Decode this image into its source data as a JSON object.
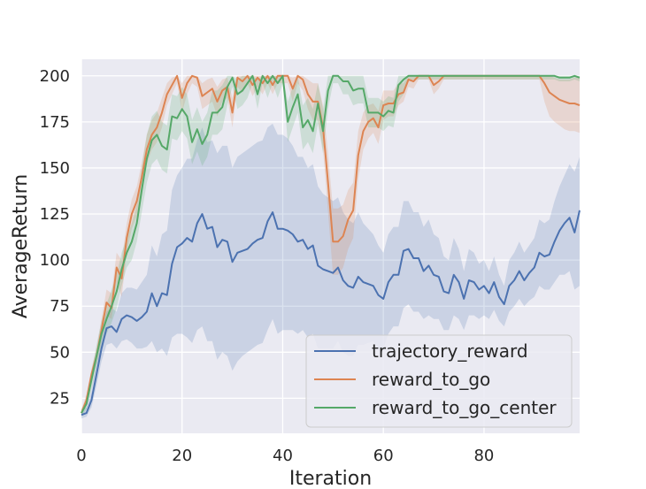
{
  "chart_data": {
    "type": "line",
    "title": "",
    "xlabel": "Iteration",
    "ylabel": "AverageReturn",
    "xlim": [
      0,
      99
    ],
    "ylim": [
      6,
      209
    ],
    "xticks": [
      0,
      20,
      40,
      60,
      80
    ],
    "yticks": [
      25,
      50,
      75,
      100,
      125,
      150,
      175,
      200
    ],
    "grid": true,
    "legend_position": "lower-right",
    "series": [
      {
        "name": "trajectory_reward",
        "color": "#4c72b0",
        "x": [
          0,
          1,
          2,
          3,
          4,
          5,
          6,
          7,
          8,
          9,
          10,
          11,
          12,
          13,
          14,
          15,
          16,
          17,
          18,
          19,
          20,
          21,
          22,
          23,
          24,
          25,
          26,
          27,
          28,
          29,
          30,
          31,
          32,
          33,
          34,
          35,
          36,
          37,
          38,
          39,
          40,
          41,
          42,
          43,
          44,
          45,
          46,
          47,
          48,
          49,
          50,
          51,
          52,
          53,
          54,
          55,
          56,
          57,
          58,
          59,
          60,
          61,
          62,
          63,
          64,
          65,
          66,
          67,
          68,
          69,
          70,
          71,
          72,
          73,
          74,
          75,
          76,
          77,
          78,
          79,
          80,
          81,
          82,
          83,
          84,
          85,
          86,
          87,
          88,
          89,
          90,
          91,
          92,
          93,
          94,
          95,
          96,
          97,
          98,
          99
        ],
        "y": [
          16,
          17,
          24,
          38,
          52,
          63,
          64,
          61,
          68,
          70,
          69,
          67,
          69,
          72,
          82,
          75,
          82,
          81,
          98,
          107,
          109,
          112,
          110,
          120,
          125,
          117,
          118,
          107,
          111,
          110,
          99,
          104,
          105,
          106,
          109,
          111,
          112,
          121,
          126,
          117,
          117,
          116,
          114,
          110,
          111,
          106,
          108,
          97,
          95,
          94,
          93,
          96,
          89,
          86,
          85,
          91,
          88,
          87,
          86,
          81,
          79,
          88,
          92,
          92,
          105,
          106,
          101,
          101,
          94,
          97,
          92,
          91,
          83,
          82,
          92,
          88,
          79,
          89,
          88,
          84,
          86,
          82,
          88,
          80,
          76,
          86,
          89,
          94,
          89,
          93,
          96,
          104,
          102,
          103,
          110,
          116,
          120,
          123,
          115,
          127
        ],
        "band_lower": [
          14,
          15,
          20,
          32,
          45,
          54,
          55,
          52,
          56,
          57,
          55,
          52,
          52,
          53,
          56,
          50,
          52,
          48,
          58,
          60,
          60,
          58,
          55,
          62,
          64,
          56,
          56,
          46,
          50,
          48,
          40,
          45,
          48,
          50,
          52,
          54,
          55,
          62,
          68,
          60,
          62,
          62,
          62,
          60,
          62,
          58,
          60,
          52,
          52,
          52,
          52,
          56,
          50,
          48,
          48,
          54,
          54,
          55,
          56,
          52,
          52,
          60,
          64,
          64,
          74,
          76,
          72,
          72,
          68,
          70,
          68,
          68,
          62,
          62,
          70,
          68,
          62,
          70,
          70,
          68,
          70,
          68,
          73,
          67,
          64,
          72,
          75,
          79,
          75,
          78,
          80,
          86,
          84,
          84,
          88,
          92,
          92,
          94,
          84,
          86
        ],
        "band_upper": [
          19,
          20,
          29,
          45,
          60,
          72,
          74,
          72,
          82,
          85,
          85,
          84,
          88,
          92,
          108,
          102,
          114,
          116,
          138,
          146,
          150,
          155,
          155,
          165,
          172,
          164,
          165,
          158,
          162,
          162,
          150,
          156,
          158,
          160,
          162,
          164,
          165,
          172,
          174,
          168,
          168,
          166,
          162,
          156,
          156,
          150,
          152,
          140,
          136,
          134,
          132,
          134,
          126,
          122,
          120,
          126,
          120,
          117,
          114,
          108,
          104,
          114,
          118,
          118,
          132,
          132,
          126,
          126,
          118,
          122,
          114,
          112,
          102,
          100,
          112,
          106,
          94,
          106,
          104,
          98,
          100,
          94,
          102,
          92,
          86,
          100,
          104,
          110,
          104,
          108,
          112,
          122,
          120,
          122,
          132,
          140,
          146,
          152,
          148,
          156
        ]
      },
      {
        "name": "reward_to_go",
        "color": "#dd8452",
        "x": [
          0,
          1,
          2,
          3,
          4,
          5,
          6,
          7,
          8,
          9,
          10,
          11,
          12,
          13,
          14,
          15,
          16,
          17,
          18,
          19,
          20,
          21,
          22,
          23,
          24,
          25,
          26,
          27,
          28,
          29,
          30,
          31,
          32,
          33,
          34,
          35,
          36,
          37,
          38,
          39,
          40,
          41,
          42,
          43,
          44,
          45,
          46,
          47,
          48,
          49,
          50,
          51,
          52,
          53,
          54,
          55,
          56,
          57,
          58,
          59,
          60,
          61,
          62,
          63,
          64,
          65,
          66,
          67,
          68,
          69,
          70,
          71,
          72,
          73,
          74,
          75,
          76,
          77,
          78,
          79,
          80,
          81,
          82,
          83,
          84,
          85,
          86,
          87,
          88,
          89,
          90,
          91,
          92,
          93,
          94,
          95,
          96,
          97,
          98,
          99
        ],
        "y": [
          17,
          24,
          38,
          48,
          62,
          77,
          74,
          96,
          90,
          112,
          125,
          132,
          145,
          160,
          168,
          172,
          180,
          190,
          195,
          200,
          188,
          196,
          200,
          199,
          189,
          191,
          193,
          186,
          192,
          194,
          180,
          199,
          197,
          200,
          195,
          199,
          196,
          200,
          195,
          200,
          200,
          200,
          193,
          200,
          198,
          190,
          186,
          186,
          172,
          142,
          110,
          110,
          113,
          122,
          127,
          157,
          170,
          175,
          177,
          172,
          184,
          185,
          185,
          190,
          191,
          198,
          197,
          200,
          200,
          200,
          195,
          197,
          200,
          200,
          200,
          200,
          200,
          200,
          200,
          200,
          200,
          200,
          200,
          200,
          200,
          200,
          200,
          200,
          200,
          200,
          200,
          200,
          196,
          191,
          189,
          187,
          186,
          185,
          185,
          184
        ],
        "band_lower": [
          16,
          22,
          35,
          44,
          56,
          70,
          68,
          88,
          80,
          104,
          117,
          124,
          137,
          152,
          160,
          164,
          172,
          184,
          190,
          196,
          180,
          190,
          196,
          194,
          182,
          184,
          186,
          178,
          186,
          188,
          172,
          194,
          191,
          196,
          189,
          194,
          190,
          196,
          190,
          196,
          196,
          196,
          186,
          196,
          192,
          182,
          176,
          176,
          160,
          126,
          92,
          92,
          96,
          106,
          112,
          144,
          160,
          166,
          169,
          163,
          176,
          178,
          178,
          184,
          186,
          194,
          193,
          198,
          198,
          198,
          190,
          193,
          198,
          198,
          198,
          198,
          198,
          198,
          198,
          198,
          198,
          198,
          198,
          198,
          198,
          198,
          198,
          198,
          198,
          198,
          198,
          198,
          186,
          178,
          175,
          173,
          171,
          170,
          170,
          169
        ],
        "band_upper": [
          19,
          27,
          41,
          52,
          68,
          84,
          82,
          104,
          100,
          120,
          133,
          140,
          153,
          168,
          176,
          180,
          188,
          196,
          199,
          200,
          196,
          200,
          200,
          200,
          196,
          198,
          199,
          194,
          198,
          199,
          188,
          200,
          200,
          200,
          200,
          200,
          200,
          200,
          200,
          200,
          200,
          200,
          199,
          200,
          200,
          198,
          196,
          196,
          184,
          158,
          128,
          128,
          130,
          138,
          142,
          170,
          180,
          184,
          185,
          181,
          192,
          192,
          192,
          196,
          196,
          200,
          200,
          200,
          200,
          200,
          200,
          200,
          200,
          200,
          200,
          200,
          200,
          200,
          200,
          200,
          200,
          200,
          200,
          200,
          200,
          200,
          200,
          200,
          200,
          200,
          200,
          200,
          200,
          200,
          199,
          198,
          198,
          198,
          199,
          199
        ]
      },
      {
        "name": "reward_to_go_center",
        "color": "#55a868",
        "x": [
          0,
          1,
          2,
          3,
          4,
          5,
          6,
          7,
          8,
          9,
          10,
          11,
          12,
          13,
          14,
          15,
          16,
          17,
          18,
          19,
          20,
          21,
          22,
          23,
          24,
          25,
          26,
          27,
          28,
          29,
          30,
          31,
          32,
          33,
          34,
          35,
          36,
          37,
          38,
          39,
          40,
          41,
          42,
          43,
          44,
          45,
          46,
          47,
          48,
          49,
          50,
          51,
          52,
          53,
          54,
          55,
          56,
          57,
          58,
          59,
          60,
          61,
          62,
          63,
          64,
          65,
          66,
          67,
          68,
          69,
          70,
          71,
          72,
          73,
          74,
          75,
          76,
          77,
          78,
          79,
          80,
          81,
          82,
          83,
          84,
          85,
          86,
          87,
          88,
          89,
          90,
          91,
          92,
          93,
          94,
          95,
          96,
          97,
          98,
          99
        ],
        "y": [
          17,
          22,
          35,
          48,
          60,
          68,
          75,
          83,
          95,
          104,
          110,
          120,
          138,
          155,
          165,
          168,
          162,
          160,
          178,
          177,
          182,
          178,
          164,
          171,
          163,
          168,
          180,
          180,
          183,
          194,
          199,
          190,
          192,
          196,
          200,
          190,
          200,
          196,
          200,
          196,
          200,
          175,
          183,
          190,
          172,
          176,
          170,
          185,
          170,
          192,
          200,
          200,
          197,
          197,
          192,
          193,
          193,
          180,
          180,
          180,
          178,
          181,
          180,
          195,
          198,
          200,
          200,
          200,
          200,
          200,
          200,
          200,
          200,
          200,
          200,
          200,
          200,
          200,
          200,
          200,
          200,
          200,
          200,
          200,
          200,
          200,
          200,
          200,
          200,
          200,
          200,
          200,
          200,
          200,
          200,
          199,
          199,
          199,
          200,
          199
        ],
        "band_lower": [
          15,
          19,
          30,
          42,
          53,
          60,
          66,
          74,
          86,
          96,
          100,
          110,
          126,
          142,
          152,
          155,
          149,
          147,
          166,
          165,
          170,
          166,
          152,
          159,
          151,
          156,
          168,
          168,
          171,
          184,
          194,
          182,
          184,
          188,
          196,
          182,
          196,
          188,
          196,
          188,
          196,
          164,
          172,
          180,
          160,
          164,
          158,
          174,
          158,
          182,
          196,
          196,
          190,
          190,
          184,
          185,
          185,
          172,
          172,
          172,
          170,
          173,
          172,
          186,
          190,
          198,
          198,
          198,
          198,
          198,
          198,
          198,
          198,
          198,
          198,
          198,
          198,
          198,
          198,
          198,
          198,
          198,
          198,
          198,
          198,
          198,
          198,
          198,
          198,
          198,
          198,
          198,
          198,
          198,
          198,
          197,
          197,
          197,
          198,
          197
        ],
        "band_upper": [
          19,
          25,
          40,
          54,
          67,
          76,
          84,
          92,
          104,
          112,
          120,
          130,
          150,
          168,
          178,
          181,
          175,
          173,
          190,
          189,
          194,
          190,
          176,
          183,
          175,
          180,
          192,
          192,
          195,
          200,
          200,
          198,
          200,
          200,
          200,
          198,
          200,
          200,
          200,
          200,
          200,
          186,
          194,
          200,
          184,
          188,
          182,
          196,
          182,
          200,
          200,
          200,
          200,
          200,
          200,
          200,
          200,
          188,
          188,
          188,
          186,
          189,
          188,
          200,
          200,
          200,
          200,
          200,
          200,
          200,
          200,
          200,
          200,
          200,
          200,
          200,
          200,
          200,
          200,
          200,
          200,
          200,
          200,
          200,
          200,
          200,
          200,
          200,
          200,
          200,
          200,
          200,
          200,
          200,
          200,
          200,
          200,
          200,
          200,
          200
        ]
      }
    ]
  }
}
